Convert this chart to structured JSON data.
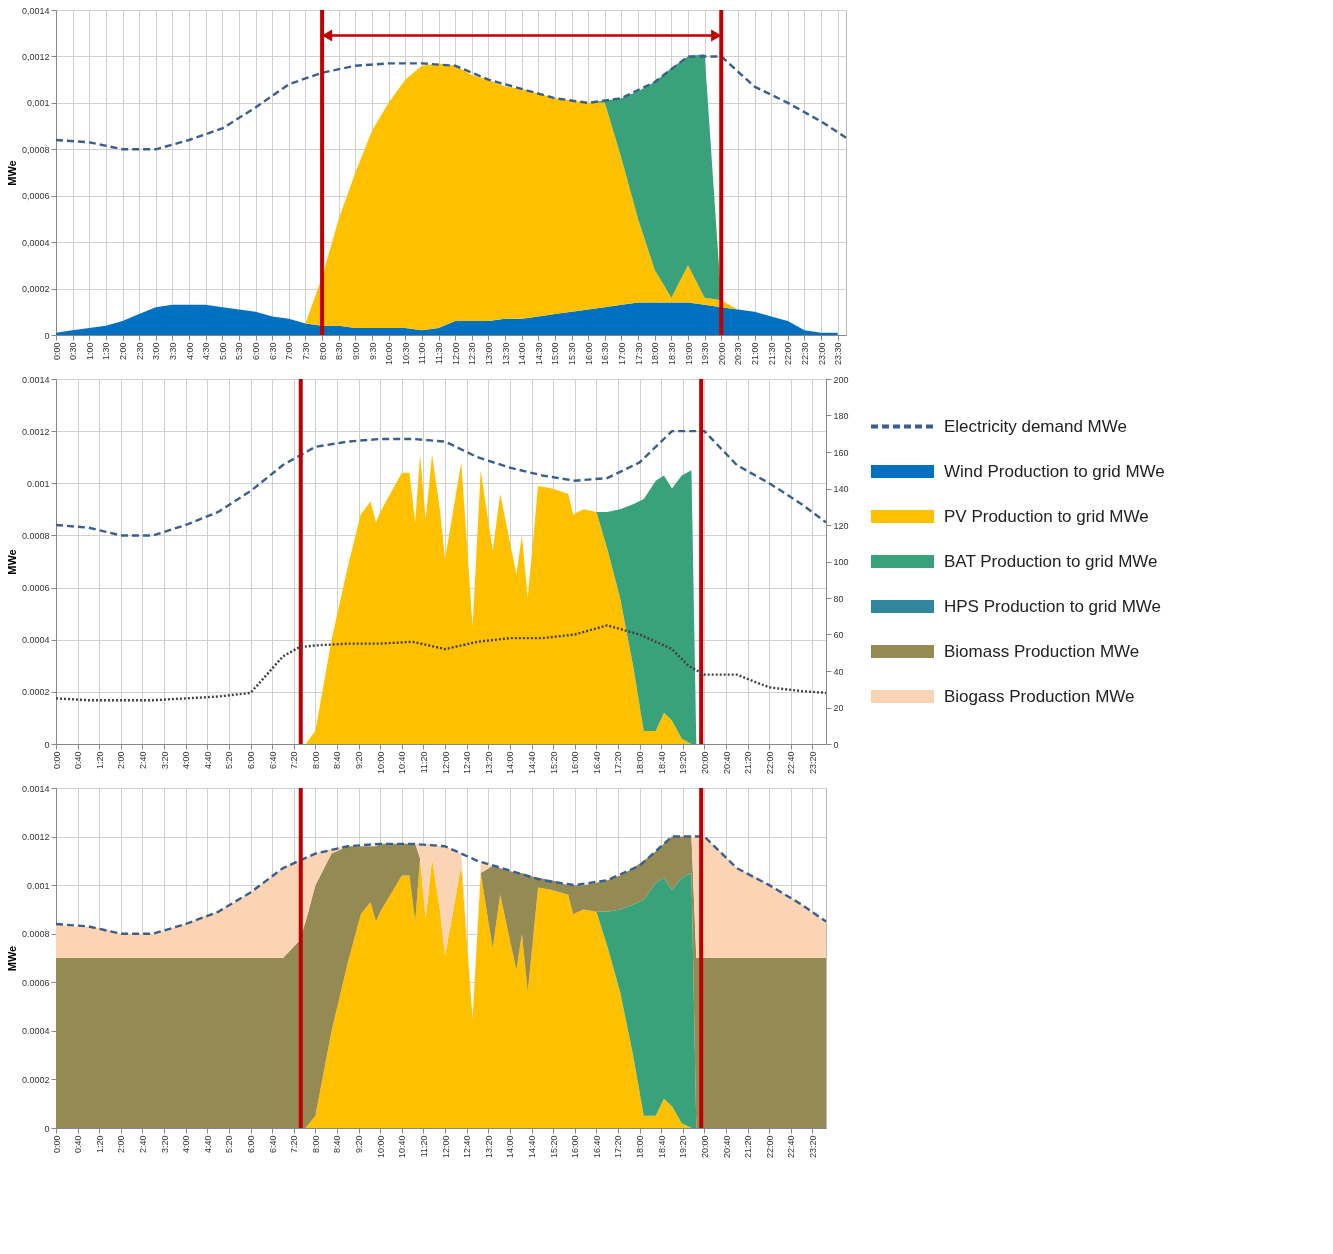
{
  "chart_data": [
    {
      "type": "area",
      "stacked": true,
      "ylabel": "MWe",
      "grid": true,
      "xlim": [
        0,
        23.75
      ],
      "ylim": [
        0,
        0.0014
      ],
      "yticks": [
        0,
        {
          "value": 0.0002,
          "label": "0,0002"
        },
        {
          "value": 0.0004,
          "label": "0,0004"
        },
        {
          "value": 0.0006,
          "label": "0,0006"
        },
        {
          "value": 0.0008,
          "label": "0,0008"
        },
        {
          "value": 0.001,
          "label": "0,001"
        },
        {
          "value": 0.0012,
          "label": "0,0012"
        },
        {
          "value": 0.0014,
          "label": "0,0014"
        }
      ],
      "xticks": [
        {
          "value": 0,
          "label": "0:00"
        },
        {
          "value": 0.5,
          "label": "0:30"
        },
        {
          "value": 1,
          "label": "1:00"
        },
        {
          "value": 1.5,
          "label": "1:30"
        },
        {
          "value": 2,
          "label": "2:00"
        },
        {
          "value": 2.5,
          "label": "2:30"
        },
        {
          "value": 3,
          "label": "3:00"
        },
        {
          "value": 3.5,
          "label": "3:30"
        },
        {
          "value": 4,
          "label": "4:00"
        },
        {
          "value": 4.5,
          "label": "4:30"
        },
        {
          "value": 5,
          "label": "5:00"
        },
        {
          "value": 5.5,
          "label": "5:30"
        },
        {
          "value": 6,
          "label": "6:00"
        },
        {
          "value": 6.5,
          "label": "6:30"
        },
        {
          "value": 7,
          "label": "7:00"
        },
        {
          "value": 7.5,
          "label": "7:30"
        },
        {
          "value": 8,
          "label": "8:00"
        },
        {
          "value": 8.5,
          "label": "8:30"
        },
        {
          "value": 9,
          "label": "9:00"
        },
        {
          "value": 9.5,
          "label": "9:30"
        },
        {
          "value": 10,
          "label": "10:00"
        },
        {
          "value": 10.5,
          "label": "10:30"
        },
        {
          "value": 11,
          "label": "11:00"
        },
        {
          "value": 11.5,
          "label": "11:30"
        },
        {
          "value": 12,
          "label": "12:00"
        },
        {
          "value": 12.5,
          "label": "12:30"
        },
        {
          "value": 13,
          "label": "13:00"
        },
        {
          "value": 13.5,
          "label": "13:30"
        },
        {
          "value": 14,
          "label": "14:00"
        },
        {
          "value": 14.5,
          "label": "14:30"
        },
        {
          "value": 15,
          "label": "15:00"
        },
        {
          "value": 15.5,
          "label": "15:30"
        },
        {
          "value": 16,
          "label": "16:00"
        },
        {
          "value": 16.5,
          "label": "16:30"
        },
        {
          "value": 17,
          "label": "17:00"
        },
        {
          "value": 17.5,
          "label": "17:30"
        },
        {
          "value": 18,
          "label": "18:00"
        },
        {
          "value": 18.5,
          "label": "18:30"
        },
        {
          "value": 19,
          "label": "19:00"
        },
        {
          "value": 19.5,
          "label": "19:30"
        },
        {
          "value": 20,
          "label": "20:00"
        },
        {
          "value": 20.5,
          "label": "20:30"
        },
        {
          "value": 21,
          "label": "21:00"
        },
        {
          "value": 21.5,
          "label": "21:30"
        },
        {
          "value": 22,
          "label": "22:00"
        },
        {
          "value": 22.5,
          "label": "22:30"
        },
        {
          "value": 23,
          "label": "23:00"
        },
        {
          "value": 23.5,
          "label": "23:30"
        }
      ],
      "x": [
        0,
        0.5,
        1,
        1.5,
        2,
        2.5,
        3,
        3.5,
        4,
        4.5,
        5,
        5.5,
        6,
        6.5,
        7,
        7.5,
        8,
        8.5,
        9,
        9.5,
        10,
        10.5,
        11,
        11.5,
        12,
        12.5,
        13,
        13.5,
        14,
        14.5,
        15,
        15.5,
        16,
        16.5,
        17,
        17.5,
        18,
        18.5,
        19,
        19.5,
        20,
        20.5,
        21,
        21.5,
        22,
        22.5,
        23,
        23.5
      ],
      "ref_lines": [
        {
          "axis": "x",
          "value": 8,
          "color": "#c00000"
        },
        {
          "axis": "x",
          "value": 20,
          "color": "#c00000"
        }
      ],
      "series": [
        {
          "color": "#0070c0",
          "values": [
            1e-05,
            2e-05,
            3e-05,
            4e-05,
            6e-05,
            9e-05,
            0.00012,
            0.00013,
            0.00013,
            0.00013,
            0.00012,
            0.00011,
            0.0001,
            8e-05,
            7e-05,
            5e-05,
            4e-05,
            4e-05,
            3e-05,
            3e-05,
            3e-05,
            3e-05,
            2e-05,
            3e-05,
            6e-05,
            6e-05,
            6e-05,
            7e-05,
            7e-05,
            8e-05,
            9e-05,
            0.0001,
            0.00011,
            0.00012,
            0.00013,
            0.00014,
            0.00014,
            0.00014,
            0.00014,
            0.00013,
            0.00012,
            0.00011,
            0.0001,
            8e-05,
            6e-05,
            2e-05,
            1e-05,
            1e-05
          ]
        },
        {
          "color": "#ffc000",
          "values": [
            0,
            0,
            0,
            0,
            0,
            0,
            0,
            0,
            0,
            0,
            0,
            0,
            0,
            0,
            0,
            0,
            0.00021,
            0.00046,
            0.00067,
            0.00085,
            0.00097,
            0.00107,
            0.00114,
            0.00114,
            0.0011,
            0.00106,
            0.00104,
            0.001,
            0.00099,
            0.00096,
            0.00093,
            0.00091,
            0.00089,
            0.00088,
            0.00063,
            0.00036,
            0.00014,
            2e-05,
            0.00016,
            3e-05,
            3e-05,
            0,
            0,
            0,
            0,
            0,
            0,
            0
          ]
        },
        {
          "color": "#39a27b",
          "values": [
            0,
            0,
            0,
            0,
            0,
            0,
            0,
            0,
            0,
            0,
            0,
            0,
            0,
            0,
            0,
            0,
            0,
            0,
            0,
            0,
            0,
            0,
            0,
            0,
            0,
            0,
            0,
            0,
            0,
            0,
            0,
            0,
            0,
            1e-05,
            0.00026,
            0.00055,
            0.00081,
            0.00099,
            0.0009,
            0.00105,
            0,
            0,
            0,
            0,
            0,
            0,
            0,
            0
          ]
        },
        {
          "type": "line",
          "line_style": "solid",
          "marker": "triangle",
          "color": "#c00000",
          "x": [
            8.15,
            19.85
          ],
          "values": [
            0.00129,
            0.00129
          ]
        },
        {
          "type": "line",
          "line_style": "dashed",
          "color": "#3a5f8f",
          "x": [
            0,
            1,
            2,
            3,
            4,
            5,
            6,
            7,
            8,
            9,
            10,
            11,
            12,
            13,
            14,
            15,
            16,
            17,
            18,
            19,
            20,
            21,
            22,
            23,
            23.75
          ],
          "values": [
            0.00084,
            0.00083,
            0.0008,
            0.0008,
            0.00084,
            0.00089,
            0.00098,
            0.00108,
            0.00113,
            0.00116,
            0.00117,
            0.00117,
            0.00116,
            0.0011,
            0.00106,
            0.00102,
            0.001,
            0.00102,
            0.00109,
            0.0012,
            0.0012,
            0.00107,
            0.001,
            0.00092,
            0.00085
          ]
        }
      ]
    },
    {
      "type": "area",
      "stacked": true,
      "ylabel": "MWe",
      "grid": true,
      "legend": "right",
      "xlim": [
        0,
        23.75
      ],
      "ylim": [
        0,
        0.0014
      ],
      "y2lim": [
        0,
        200
      ],
      "yticks": [
        0,
        0.0002,
        0.0004,
        0.0006,
        0.0008,
        0.001,
        0.0012,
        0.0014
      ],
      "y2ticks": [
        0,
        20,
        40,
        60,
        80,
        100,
        120,
        140,
        160,
        180,
        200
      ],
      "xticks": [
        {
          "value": 0,
          "label": "0:00"
        },
        {
          "value": 0.6667,
          "label": "0:40"
        },
        {
          "value": 1.3333,
          "label": "1:20"
        },
        {
          "value": 2,
          "label": "2:00"
        },
        {
          "value": 2.6667,
          "label": "2:40"
        },
        {
          "value": 3.3333,
          "label": "3:20"
        },
        {
          "value": 4,
          "label": "4:00"
        },
        {
          "value": 4.6667,
          "label": "4:40"
        },
        {
          "value": 5.3333,
          "label": "5:20"
        },
        {
          "value": 6,
          "label": "6:00"
        },
        {
          "value": 6.6667,
          "label": "6:40"
        },
        {
          "value": 7.3333,
          "label": "7:20"
        },
        {
          "value": 8,
          "label": "8:00"
        },
        {
          "value": 8.6667,
          "label": "8:40"
        },
        {
          "value": 9.3333,
          "label": "9:20"
        },
        {
          "value": 10,
          "label": "10:00"
        },
        {
          "value": 10.6667,
          "label": "10:40"
        },
        {
          "value": 11.3333,
          "label": "11:20"
        },
        {
          "value": 12,
          "label": "12:00"
        },
        {
          "value": 12.6667,
          "label": "12:40"
        },
        {
          "value": 13.3333,
          "label": "13:20"
        },
        {
          "value": 14,
          "label": "14:00"
        },
        {
          "value": 14.6667,
          "label": "14:40"
        },
        {
          "value": 15.3333,
          "label": "15:20"
        },
        {
          "value": 16,
          "label": "16:00"
        },
        {
          "value": 16.6667,
          "label": "16:40"
        },
        {
          "value": 17.3333,
          "label": "17:20"
        },
        {
          "value": 18,
          "label": "18:00"
        },
        {
          "value": 18.6667,
          "label": "18:40"
        },
        {
          "value": 19.3333,
          "label": "19:20"
        },
        {
          "value": 20,
          "label": "20:00"
        },
        {
          "value": 20.6667,
          "label": "20:40"
        },
        {
          "value": 21.3333,
          "label": "21:20"
        },
        {
          "value": 22,
          "label": "22:00"
        },
        {
          "value": 22.6667,
          "label": "22:40"
        },
        {
          "value": 23.3333,
          "label": "23:20"
        }
      ],
      "x": [
        0,
        0.5,
        1,
        1.5,
        2,
        2.5,
        3,
        3.5,
        4,
        4.5,
        5,
        5.5,
        6,
        6.5,
        7,
        7.5,
        7.7,
        8,
        8.5,
        9,
        9.4,
        9.7,
        9.87,
        10,
        10.67,
        10.9,
        11.08,
        11.23,
        11.4,
        11.6,
        11.85,
        12,
        12.5,
        12.85,
        13.1,
        13.47,
        13.7,
        14.2,
        14.37,
        14.55,
        14.87,
        15.3,
        15.8,
        15.95,
        16.27,
        16.67,
        17,
        17.4,
        17.8,
        18.13,
        18.5,
        18.75,
        19,
        19.3,
        19.6,
        19.75,
        20,
        20.5,
        21,
        21.5,
        22,
        22.5,
        23,
        23.5,
        23.75
      ],
      "ref_lines": [
        {
          "axis": "x",
          "value": 7.55,
          "color": "#c00000"
        },
        {
          "axis": "x",
          "value": 19.9,
          "color": "#c00000"
        }
      ],
      "series": [
        {
          "name": "Wind Production to grid MWe",
          "color": "#0070c0",
          "values": [
            null,
            null,
            null,
            null,
            null,
            null,
            null,
            null,
            null,
            null,
            null,
            null,
            null,
            null,
            null,
            null,
            null,
            null,
            null,
            null,
            null,
            null,
            null,
            null,
            null,
            null,
            null,
            null,
            null,
            null,
            null,
            null,
            null,
            null,
            null,
            null,
            null,
            null,
            null,
            null,
            null,
            null,
            null,
            null,
            null,
            null,
            null,
            null,
            null,
            null,
            null,
            null,
            null,
            null,
            null,
            null,
            null,
            null,
            null,
            null,
            null,
            null,
            null,
            null,
            null
          ]
        },
        {
          "name": "PV Production to grid MWe",
          "color": "#ffc000",
          "values": [
            0,
            0,
            0,
            0,
            0,
            0,
            0,
            0,
            0,
            0,
            0,
            0,
            0,
            0,
            0,
            0,
            0,
            5e-05,
            0.0004,
            0.00068,
            0.00088,
            0.00093,
            0.00085,
            0.00089,
            0.00104,
            0.00104,
            0.00085,
            0.00111,
            0.00086,
            0.00111,
            0.00089,
            0.00071,
            0.00108,
            0.00045,
            0.00105,
            0.00074,
            0.00096,
            0.00065,
            0.0008,
            0.00056,
            0.00099,
            0.00098,
            0.00096,
            0.00088,
            0.0009,
            0.00089,
            0.00075,
            0.00056,
            0.0003,
            5e-05,
            5e-05,
            0.00012,
            9e-05,
            2e-05,
            0,
            0,
            0,
            0,
            0,
            0,
            0,
            0,
            0,
            0,
            0
          ]
        },
        {
          "name": "BAT Production to grid MWe",
          "color": "#39a27b",
          "values": [
            null,
            null,
            null,
            null,
            null,
            null,
            null,
            null,
            null,
            null,
            null,
            null,
            null,
            null,
            null,
            null,
            null,
            null,
            null,
            null,
            null,
            null,
            null,
            null,
            null,
            null,
            null,
            null,
            null,
            null,
            null,
            null,
            null,
            null,
            null,
            null,
            null,
            null,
            null,
            null,
            null,
            null,
            null,
            null,
            null,
            0,
            0.00014,
            0.00034,
            0.00062,
            0.00089,
            0.00096,
            0.00091,
            0.00089,
            0.00101,
            0.00105,
            0,
            null,
            null,
            null,
            null,
            null,
            null,
            null,
            null,
            null
          ]
        },
        {
          "name": "HPS Production to grid MWe",
          "color": "#31859c",
          "values": [
            null,
            null,
            null,
            null,
            null,
            null,
            null,
            null,
            null,
            null,
            null,
            null,
            null,
            null,
            null,
            null,
            null,
            null,
            null,
            null,
            null,
            null,
            null,
            null,
            null,
            null,
            null,
            null,
            null,
            null,
            null,
            null,
            null,
            null,
            null,
            null,
            null,
            null,
            null,
            null,
            null,
            null,
            null,
            null,
            null,
            null,
            null,
            null,
            null,
            null,
            null,
            null,
            null,
            null,
            null,
            null,
            null,
            null,
            null,
            null,
            null,
            null,
            null,
            null,
            null
          ]
        },
        {
          "name": "Biomass Production MWe",
          "color": "#948a54",
          "values": [
            null,
            null,
            null,
            null,
            null,
            null,
            null,
            null,
            null,
            null,
            null,
            null,
            null,
            null,
            null,
            null,
            null,
            null,
            null,
            null,
            null,
            null,
            null,
            null,
            null,
            null,
            null,
            null,
            null,
            null,
            null,
            null,
            null,
            null,
            null,
            null,
            null,
            null,
            null,
            null,
            null,
            null,
            null,
            null,
            null,
            null,
            null,
            null,
            null,
            null,
            null,
            null,
            null,
            null,
            null,
            null,
            null,
            null,
            null,
            null,
            null,
            null,
            null,
            null,
            null
          ]
        },
        {
          "name": "Biogass Production MWe",
          "color": "#fad4b4",
          "values": [
            null,
            null,
            null,
            null,
            null,
            null,
            null,
            null,
            null,
            null,
            null,
            null,
            null,
            null,
            null,
            null,
            null,
            null,
            null,
            null,
            null,
            null,
            null,
            null,
            null,
            null,
            null,
            null,
            null,
            null,
            null,
            null,
            null,
            null,
            null,
            null,
            null,
            null,
            null,
            null,
            null,
            null,
            null,
            null,
            null,
            null,
            null,
            null,
            null,
            null,
            null,
            null,
            null,
            null,
            null,
            null,
            null,
            null,
            null,
            null,
            null,
            null,
            null,
            null,
            null
          ]
        },
        {
          "name": "Electricity demand MWe",
          "type": "line",
          "line_style": "dashed",
          "color": "#3a5f8f",
          "x": [
            0,
            1,
            2,
            3,
            4,
            5,
            6,
            7,
            8,
            9,
            10,
            11,
            12,
            13,
            14,
            15,
            16,
            17,
            18,
            19,
            20,
            21,
            22,
            23,
            23.75
          ],
          "values": [
            0.00084,
            0.00083,
            0.0008,
            0.0008,
            0.00084,
            0.00089,
            0.00097,
            0.00107,
            0.00114,
            0.00116,
            0.00117,
            0.00117,
            0.00116,
            0.0011,
            0.00106,
            0.00103,
            0.00101,
            0.00102,
            0.00108,
            0.0012,
            0.0012,
            0.00107,
            0.001,
            0.00092,
            0.00085
          ]
        },
        {
          "type": "line",
          "axis": "y2",
          "line_style": "dotted",
          "color": "#404040",
          "x": [
            0,
            1,
            2,
            3,
            4,
            5,
            6,
            6.5,
            7,
            7.5,
            8,
            9,
            10,
            11,
            12,
            13,
            14,
            15,
            16,
            17,
            18,
            19,
            19.5,
            20,
            21,
            22,
            23,
            23.75
          ],
          "values": [
            25,
            24,
            24,
            24,
            25,
            26,
            28,
            38,
            48,
            53,
            54,
            55,
            55,
            56,
            52,
            56,
            58,
            58,
            60,
            65,
            60,
            52,
            43,
            38,
            38,
            31,
            29,
            28
          ]
        }
      ]
    },
    {
      "type": "area",
      "stacked": true,
      "ylabel": "MWe",
      "grid": true,
      "xlim": [
        0,
        23.75
      ],
      "ylim": [
        0,
        0.0014
      ],
      "yticks": [
        0,
        0.0002,
        0.0004,
        0.0006,
        0.0008,
        0.001,
        0.0012,
        0.0014
      ],
      "xticks": [
        {
          "value": 0,
          "label": "0:00"
        },
        {
          "value": 0.6667,
          "label": "0:40"
        },
        {
          "value": 1.3333,
          "label": "1:20"
        },
        {
          "value": 2,
          "label": "2:00"
        },
        {
          "value": 2.6667,
          "label": "2:40"
        },
        {
          "value": 3.3333,
          "label": "3:20"
        },
        {
          "value": 4,
          "label": "4:00"
        },
        {
          "value": 4.6667,
          "label": "4:40"
        },
        {
          "value": 5.3333,
          "label": "5:20"
        },
        {
          "value": 6,
          "label": "6:00"
        },
        {
          "value": 6.6667,
          "label": "6:40"
        },
        {
          "value": 7.3333,
          "label": "7:20"
        },
        {
          "value": 8,
          "label": "8:00"
        },
        {
          "value": 8.6667,
          "label": "8:40"
        },
        {
          "value": 9.3333,
          "label": "9:20"
        },
        {
          "value": 10,
          "label": "10:00"
        },
        {
          "value": 10.6667,
          "label": "10:40"
        },
        {
          "value": 11.3333,
          "label": "11:20"
        },
        {
          "value": 12,
          "label": "12:00"
        },
        {
          "value": 12.6667,
          "label": "12:40"
        },
        {
          "value": 13.3333,
          "label": "13:20"
        },
        {
          "value": 14,
          "label": "14:00"
        },
        {
          "value": 14.6667,
          "label": "14:40"
        },
        {
          "value": 15.3333,
          "label": "15:20"
        },
        {
          "value": 16,
          "label": "16:00"
        },
        {
          "value": 16.6667,
          "label": "16:40"
        },
        {
          "value": 17.3333,
          "label": "17:20"
        },
        {
          "value": 18,
          "label": "18:00"
        },
        {
          "value": 18.6667,
          "label": "18:40"
        },
        {
          "value": 19.3333,
          "label": "19:20"
        },
        {
          "value": 20,
          "label": "20:00"
        },
        {
          "value": 20.6667,
          "label": "20:40"
        },
        {
          "value": 21.3333,
          "label": "21:20"
        },
        {
          "value": 22,
          "label": "22:00"
        },
        {
          "value": 22.6667,
          "label": "22:40"
        },
        {
          "value": 23.3333,
          "label": "23:20"
        }
      ],
      "x": [
        0,
        0.5,
        1,
        1.5,
        2,
        2.5,
        3,
        3.5,
        4,
        4.5,
        5,
        5.5,
        6,
        6.5,
        7,
        7.5,
        7.7,
        8,
        8.5,
        9,
        9.4,
        9.7,
        9.87,
        10,
        10.67,
        10.9,
        11.08,
        11.23,
        11.4,
        11.6,
        11.85,
        12,
        12.5,
        12.85,
        13.1,
        13.47,
        13.7,
        14.2,
        14.37,
        14.55,
        14.87,
        15.3,
        15.8,
        15.95,
        16.27,
        16.67,
        17,
        17.4,
        17.8,
        18.13,
        18.5,
        18.75,
        19,
        19.3,
        19.6,
        19.75,
        20,
        20.5,
        21,
        21.5,
        22,
        22.5,
        23,
        23.5,
        23.75
      ],
      "ref_lines": [
        {
          "axis": "x",
          "value": 7.55,
          "color": "#c00000"
        },
        {
          "axis": "x",
          "value": 19.9,
          "color": "#c00000"
        }
      ],
      "series": [
        {
          "color": "#ffc000",
          "values": [
            0,
            0,
            0,
            0,
            0,
            0,
            0,
            0,
            0,
            0,
            0,
            0,
            0,
            0,
            0,
            0,
            0,
            5e-05,
            0.0004,
            0.00068,
            0.00088,
            0.00093,
            0.00085,
            0.00089,
            0.00104,
            0.00104,
            0.00085,
            0.00111,
            0.00086,
            0.00111,
            0.00089,
            0.00071,
            0.00108,
            0.00045,
            0.00105,
            0.00074,
            0.00096,
            0.00065,
            0.0008,
            0.00056,
            0.00099,
            0.00098,
            0.00096,
            0.00088,
            0.0009,
            0.00089,
            0.00075,
            0.00056,
            0.0003,
            5e-05,
            5e-05,
            0.00012,
            9e-05,
            2e-05,
            0,
            0,
            0,
            0,
            0,
            0,
            0,
            0,
            0,
            0,
            0
          ]
        },
        {
          "color": "#39a27b",
          "values": [
            null,
            null,
            null,
            null,
            null,
            null,
            null,
            null,
            null,
            null,
            null,
            null,
            null,
            null,
            null,
            null,
            null,
            null,
            null,
            null,
            null,
            null,
            null,
            null,
            null,
            null,
            null,
            null,
            null,
            null,
            null,
            null,
            null,
            null,
            null,
            null,
            null,
            null,
            null,
            null,
            null,
            null,
            null,
            null,
            null,
            0,
            0.00014,
            0.00034,
            0.00062,
            0.00089,
            0.00096,
            0.00091,
            0.00089,
            0.00101,
            0.00105,
            0,
            null,
            null,
            null,
            null,
            null,
            null,
            null,
            null,
            null
          ]
        },
        {
          "color": "#948a54",
          "values": [
            0.0007,
            0.0007,
            0.0007,
            0.0007,
            0.0007,
            0.0007,
            0.0007,
            0.0007,
            0.0007,
            0.0007,
            0.0007,
            0.0007,
            0.0007,
            0.0007,
            0.0007,
            0.00077,
            0.00085,
            0.00095,
            0.00073,
            0.00048,
            0.00028,
            0.00023,
            0.00031,
            0.00028,
            0.00013,
            0.00013,
            0.00032,
            0,
            null,
            null,
            null,
            null,
            null,
            null,
            0,
            0.00034,
            0.00011,
            0.0004,
            0.00025,
            0.00048,
            4e-05,
            4e-05,
            4e-05,
            0.00012,
            0.0001,
            0.00012,
            0.00013,
            0.00014,
            0.00015,
            0.00016,
            0.00013,
            0.00014,
            0.00022,
            0.00017,
            0.00015,
            0.0007,
            0.0007,
            0.0007,
            0.0007,
            0.0007,
            0.0007,
            0.0007,
            0.0007,
            0.0007,
            0.0007
          ]
        },
        {
          "color": "#fad4b4",
          "values": [
            0.00014,
            0.00013,
            0.00013,
            0.00012,
            0.0001,
            0.0001,
            0.0001,
            0.00012,
            0.00014,
            0.00017,
            0.00019,
            0.00023,
            0.00027,
            0.00032,
            0.00037,
            0.00033,
            0.00026,
            0.00013,
            2e-05,
            0,
            null,
            null,
            null,
            null,
            null,
            null,
            0,
            6e-05,
            0.00031,
            6e-05,
            0.00027,
            0.00045,
            5e-05,
            0,
            4e-05,
            0,
            null,
            null,
            null,
            null,
            null,
            null,
            null,
            null,
            null,
            null,
            null,
            null,
            null,
            null,
            null,
            null,
            null,
            null,
            0,
            0.0005,
            0.0005,
            0.00044,
            0.00037,
            0.00034,
            0.0003,
            0.00026,
            0.00022,
            0.00017,
            0.00015
          ]
        },
        {
          "type": "line",
          "line_style": "dashed",
          "color": "#3a5f8f",
          "x": [
            0,
            1,
            2,
            3,
            4,
            5,
            6,
            7,
            8,
            9,
            10,
            11,
            12,
            13,
            14,
            15,
            16,
            17,
            18,
            19,
            20,
            21,
            22,
            23,
            23.75
          ],
          "values": [
            0.00084,
            0.00083,
            0.0008,
            0.0008,
            0.00084,
            0.00089,
            0.00097,
            0.00107,
            0.00113,
            0.00116,
            0.00117,
            0.00117,
            0.00116,
            0.0011,
            0.00106,
            0.00102,
            0.001,
            0.00102,
            0.00108,
            0.0012,
            0.0012,
            0.00107,
            0.001,
            0.00092,
            0.00085
          ]
        }
      ]
    }
  ]
}
